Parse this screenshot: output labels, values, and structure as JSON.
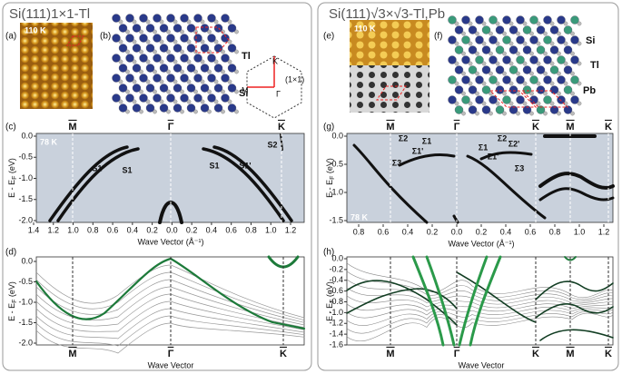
{
  "left": {
    "title": "Si(111)1×1-Tl",
    "a": {
      "label": "(a)",
      "temp": "110 K"
    },
    "b": {
      "label": "(b)",
      "atoms": [
        "Tl",
        "Si"
      ],
      "bz": {
        "points": [
          "K",
          "M",
          "Γ"
        ],
        "cell": "(1×1)"
      }
    },
    "c": {
      "label": "(c)",
      "temp": "78 K",
      "points": [
        "M",
        "Γ",
        "K"
      ],
      "bands": [
        "S1'",
        "S1",
        "S1",
        "S1'",
        "S2"
      ],
      "xticks": [
        "1.4",
        "1.2",
        "1.0",
        "0.8",
        "0.6",
        "0.4",
        "0.2",
        "0.0",
        "0.2",
        "0.4",
        "0.6",
        "0.8",
        "1.0",
        "1.2"
      ],
      "yticks": [
        "0.0",
        "-0.5",
        "-1.0",
        "-1.5",
        "-2.0"
      ],
      "xlabel": "Wave Vector (Å⁻¹)",
      "ylabel": {
        "main": "E - E",
        "sub": "F",
        "unit": " (eV)"
      }
    },
    "d": {
      "label": "(d)",
      "points": [
        "M",
        "Γ",
        "K"
      ],
      "yticks": [
        "0.0",
        "-0.5",
        "-1.0",
        "-1.5",
        "-2.0"
      ],
      "xlabel": "Wave Vector",
      "ylabel": {
        "main": "E - E",
        "sub": "F",
        "unit": " (eV)"
      }
    }
  },
  "right": {
    "title": "Si(111)√3×√3-Tl,Pb",
    "e": {
      "label": "(e)",
      "temp": "110 K"
    },
    "f": {
      "label": "(f)",
      "atoms": [
        "Si",
        "Tl",
        "Pb"
      ]
    },
    "g": {
      "label": "(g)",
      "temp": "78 K",
      "points": [
        "M",
        "Γ",
        "K",
        "M",
        "K"
      ],
      "bands": [
        "Σ2",
        "Σ1",
        "Σ1'",
        "Σ3",
        "Σ1",
        "Σ1'",
        "Σ2",
        "Σ2'",
        "Σ3"
      ],
      "xticks": [
        "0.8",
        "0.6",
        "0.4",
        "0.2",
        "0.0",
        "0.2",
        "0.4",
        "0.6",
        "0.8",
        "1.0",
        "1.2"
      ],
      "yticks": [
        "0.0",
        "-0.5",
        "-1.0",
        "-1.5"
      ],
      "xlabel": "Wave Vector (Å⁻¹)",
      "ylabel": {
        "main": "E - E",
        "sub": "F",
        "unit": " (eV)"
      }
    },
    "h": {
      "label": "(h)",
      "points": [
        "M",
        "Γ",
        "K",
        "M",
        "K"
      ],
      "yticks": [
        "0.0",
        "-0.2",
        "-0.4",
        "-0.6",
        "-0.8",
        "-1.0",
        "-1.2",
        "-1.4",
        "-1.6"
      ],
      "xlabel": "Wave Vector",
      "ylabel": {
        "main": "E - E",
        "sub": "F",
        "unit": " (eV)"
      }
    }
  }
}
